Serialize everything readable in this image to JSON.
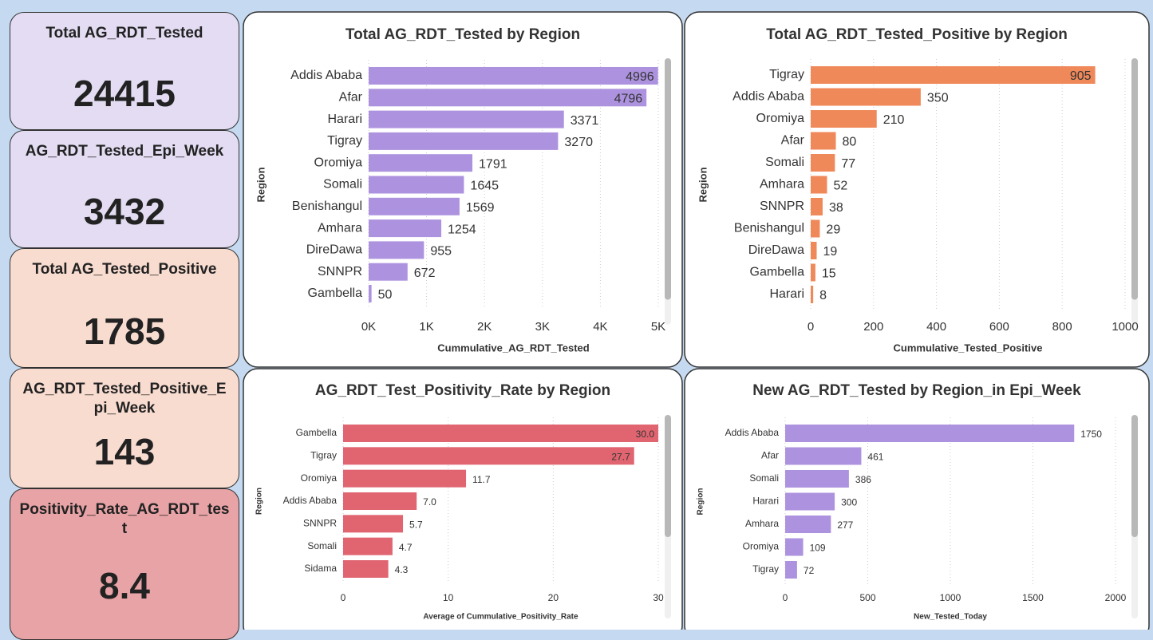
{
  "cards": [
    {
      "title": "Total AG_RDT_Tested",
      "value": 24415
    },
    {
      "title": "AG_RDT_Tested_Epi_Week",
      "value": 3432
    },
    {
      "title": "Total AG_Tested_Positive",
      "value": 1785
    },
    {
      "title": "AG_RDT_Tested_Positive_Epi_Week",
      "value": 143
    },
    {
      "title": "Positivity_Rate_AG_RDT_test",
      "value": 8.4
    }
  ],
  "chart_data": [
    {
      "type": "bar",
      "orientation": "horizontal",
      "title": "Total AG_RDT_Tested by Region",
      "xlabel": "Cummulative_AG_RDT_Tested",
      "ylabel": "Region",
      "categories": [
        "Addis Ababa",
        "Afar",
        "Harari",
        "Tigray",
        "Oromiya",
        "Somali",
        "Benishangul",
        "Amhara",
        "DireDawa",
        "SNNPR",
        "Gambella"
      ],
      "values": [
        4996,
        4796,
        3371,
        3270,
        1791,
        1645,
        1569,
        1254,
        955,
        672,
        50
      ],
      "color": "#ad93df",
      "xlim": [
        0,
        5000
      ],
      "xticks": [
        {
          "value": 0,
          "label": "0K"
        },
        {
          "value": 1000,
          "label": "1K"
        },
        {
          "value": 2000,
          "label": "2K"
        },
        {
          "value": 3000,
          "label": "3K"
        },
        {
          "value": 4000,
          "label": "4K"
        },
        {
          "value": 5000,
          "label": "5K"
        }
      ],
      "grid": true
    },
    {
      "type": "bar",
      "orientation": "horizontal",
      "title": "Total AG_RDT_Tested_Positive by Region",
      "xlabel": "Cummulative_Tested_Positive",
      "ylabel": "Region",
      "categories": [
        "Tigray",
        "Addis Ababa",
        "Oromiya",
        "Afar",
        "Somali",
        "Amhara",
        "SNNPR",
        "Benishangul",
        "DireDawa",
        "Gambella",
        "Harari"
      ],
      "values": [
        905,
        350,
        210,
        80,
        77,
        52,
        38,
        29,
        19,
        15,
        8
      ],
      "color": "#f0895a",
      "xlim": [
        0,
        1000
      ],
      "xticks": [
        0,
        200,
        400,
        600,
        800,
        1000
      ],
      "grid": true
    },
    {
      "type": "bar",
      "orientation": "horizontal",
      "title": "AG_RDT_Test_Positivity_Rate by Region",
      "xlabel": "Average of Cummulative_Positivity_Rate",
      "ylabel": "Region",
      "categories": [
        "Gambella",
        "Tigray",
        "Oromiya",
        "Addis Ababa",
        "SNNPR",
        "Somali",
        "Sidama"
      ],
      "values": [
        30.0,
        27.7,
        11.7,
        7.0,
        5.7,
        4.7,
        4.3
      ],
      "value_labels": [
        "30.0",
        "27.7",
        "11.7",
        "7.0",
        "5.7",
        "4.7",
        "4.3"
      ],
      "color": "#e06570",
      "xlim": [
        0,
        30
      ],
      "xticks": [
        0,
        10,
        20,
        30
      ],
      "grid": true
    },
    {
      "type": "bar",
      "orientation": "horizontal",
      "title": "New AG_RDT_Tested by Region_in Epi_Week",
      "xlabel": "New_Tested_Today",
      "ylabel": "Region",
      "categories": [
        "Addis Ababa",
        "Afar",
        "Somali",
        "Harari",
        "Amhara",
        "Oromiya",
        "Tigray"
      ],
      "values": [
        1750,
        461,
        386,
        300,
        277,
        109,
        72
      ],
      "color": "#ad93df",
      "xlim": [
        0,
        2000
      ],
      "xticks": [
        0,
        500,
        1000,
        1500,
        2000
      ],
      "grid": true
    }
  ]
}
